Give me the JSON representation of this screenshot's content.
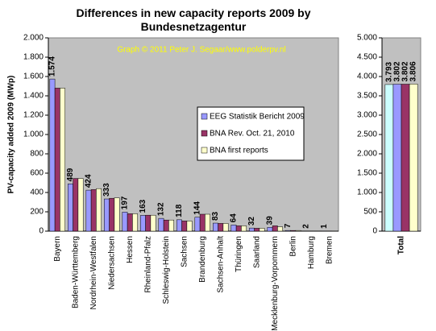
{
  "chart_data": [
    {
      "type": "bar",
      "title": "Differences in new capacity reports 2009 by Bundesnetzagentur",
      "annotation": "Graph © 2011 Peter J. Segaar/www.polderpv.nl",
      "ylabel": "PV-capacity added 2009 (MWp)",
      "categories": [
        "Bayern",
        "Baden-Württemberg",
        "Nordrhein-Westfalen",
        "Niedersachsen",
        "Hessen",
        "Rheinland-Pfalz",
        "Schleswig-Holstein",
        "Sachsen",
        "Brandenburg",
        "Sachsen-Anhalt",
        "Thüringen",
        "Saarland",
        "Mecklenburg-Vorpommern",
        "Berlin",
        "Hamburg",
        "Bremen"
      ],
      "series": [
        {
          "name": "EEG Statistik Bericht 2009",
          "color": "#9999ff",
          "values": [
            1574,
            489,
            424,
            333,
            197,
            163,
            132,
            118,
            144,
            83,
            64,
            32,
            39,
            7,
            2,
            1
          ],
          "value_labels": [
            "1.574",
            "489",
            "424",
            "333",
            "197",
            "163",
            "132",
            "118",
            "144",
            "83",
            "64",
            "32",
            "39",
            "7",
            "2",
            "1"
          ]
        },
        {
          "name": "BNA Rev. Oct. 21, 2010",
          "color": "#993366",
          "values": [
            1480,
            545,
            430,
            340,
            180,
            165,
            115,
            105,
            175,
            80,
            55,
            30,
            55,
            7,
            2,
            1
          ]
        },
        {
          "name": "BNA first reports",
          "color": "#ffffcc",
          "values": [
            1480,
            545,
            440,
            345,
            180,
            165,
            115,
            105,
            175,
            80,
            55,
            30,
            45,
            7,
            2,
            1
          ]
        }
      ],
      "ylim": [
        0,
        2000
      ],
      "yticks": [
        {
          "value": 0,
          "label": "0"
        },
        {
          "value": 200,
          "label": "200"
        },
        {
          "value": 400,
          "label": "400"
        },
        {
          "value": 600,
          "label": "600"
        },
        {
          "value": 800,
          "label": "800"
        },
        {
          "value": 1000,
          "label": "1.000"
        },
        {
          "value": 1200,
          "label": "1.200"
        },
        {
          "value": 1400,
          "label": "1.400"
        },
        {
          "value": 1600,
          "label": "1.600"
        },
        {
          "value": 1800,
          "label": "1.800"
        },
        {
          "value": 2000,
          "label": "2.000"
        }
      ],
      "legend": "right"
    },
    {
      "type": "bar",
      "categories": [
        "Total"
      ],
      "series": [
        {
          "color": "#ccffff",
          "values": [
            3793
          ],
          "value_labels": [
            "3.793"
          ]
        },
        {
          "color": "#9999ff",
          "values": [
            3802
          ],
          "value_labels": [
            "3.802"
          ]
        },
        {
          "color": "#993366",
          "values": [
            3802
          ],
          "value_labels": [
            "3.802"
          ]
        },
        {
          "color": "#ffffcc",
          "values": [
            3806
          ],
          "value_labels": [
            "3.806"
          ]
        }
      ],
      "ylim": [
        0,
        5000
      ],
      "yticks": [
        {
          "value": 0,
          "label": "0"
        },
        {
          "value": 500,
          "label": "500"
        },
        {
          "value": 1000,
          "label": "1.000"
        },
        {
          "value": 1500,
          "label": "1.500"
        },
        {
          "value": 2000,
          "label": "2.000"
        },
        {
          "value": 2500,
          "label": "2.500"
        },
        {
          "value": 3000,
          "label": "3.000"
        },
        {
          "value": 3500,
          "label": "3.500"
        },
        {
          "value": 4000,
          "label": "4.000"
        },
        {
          "value": 4500,
          "label": "4.500"
        },
        {
          "value": 5000,
          "label": "5.000"
        }
      ]
    }
  ]
}
